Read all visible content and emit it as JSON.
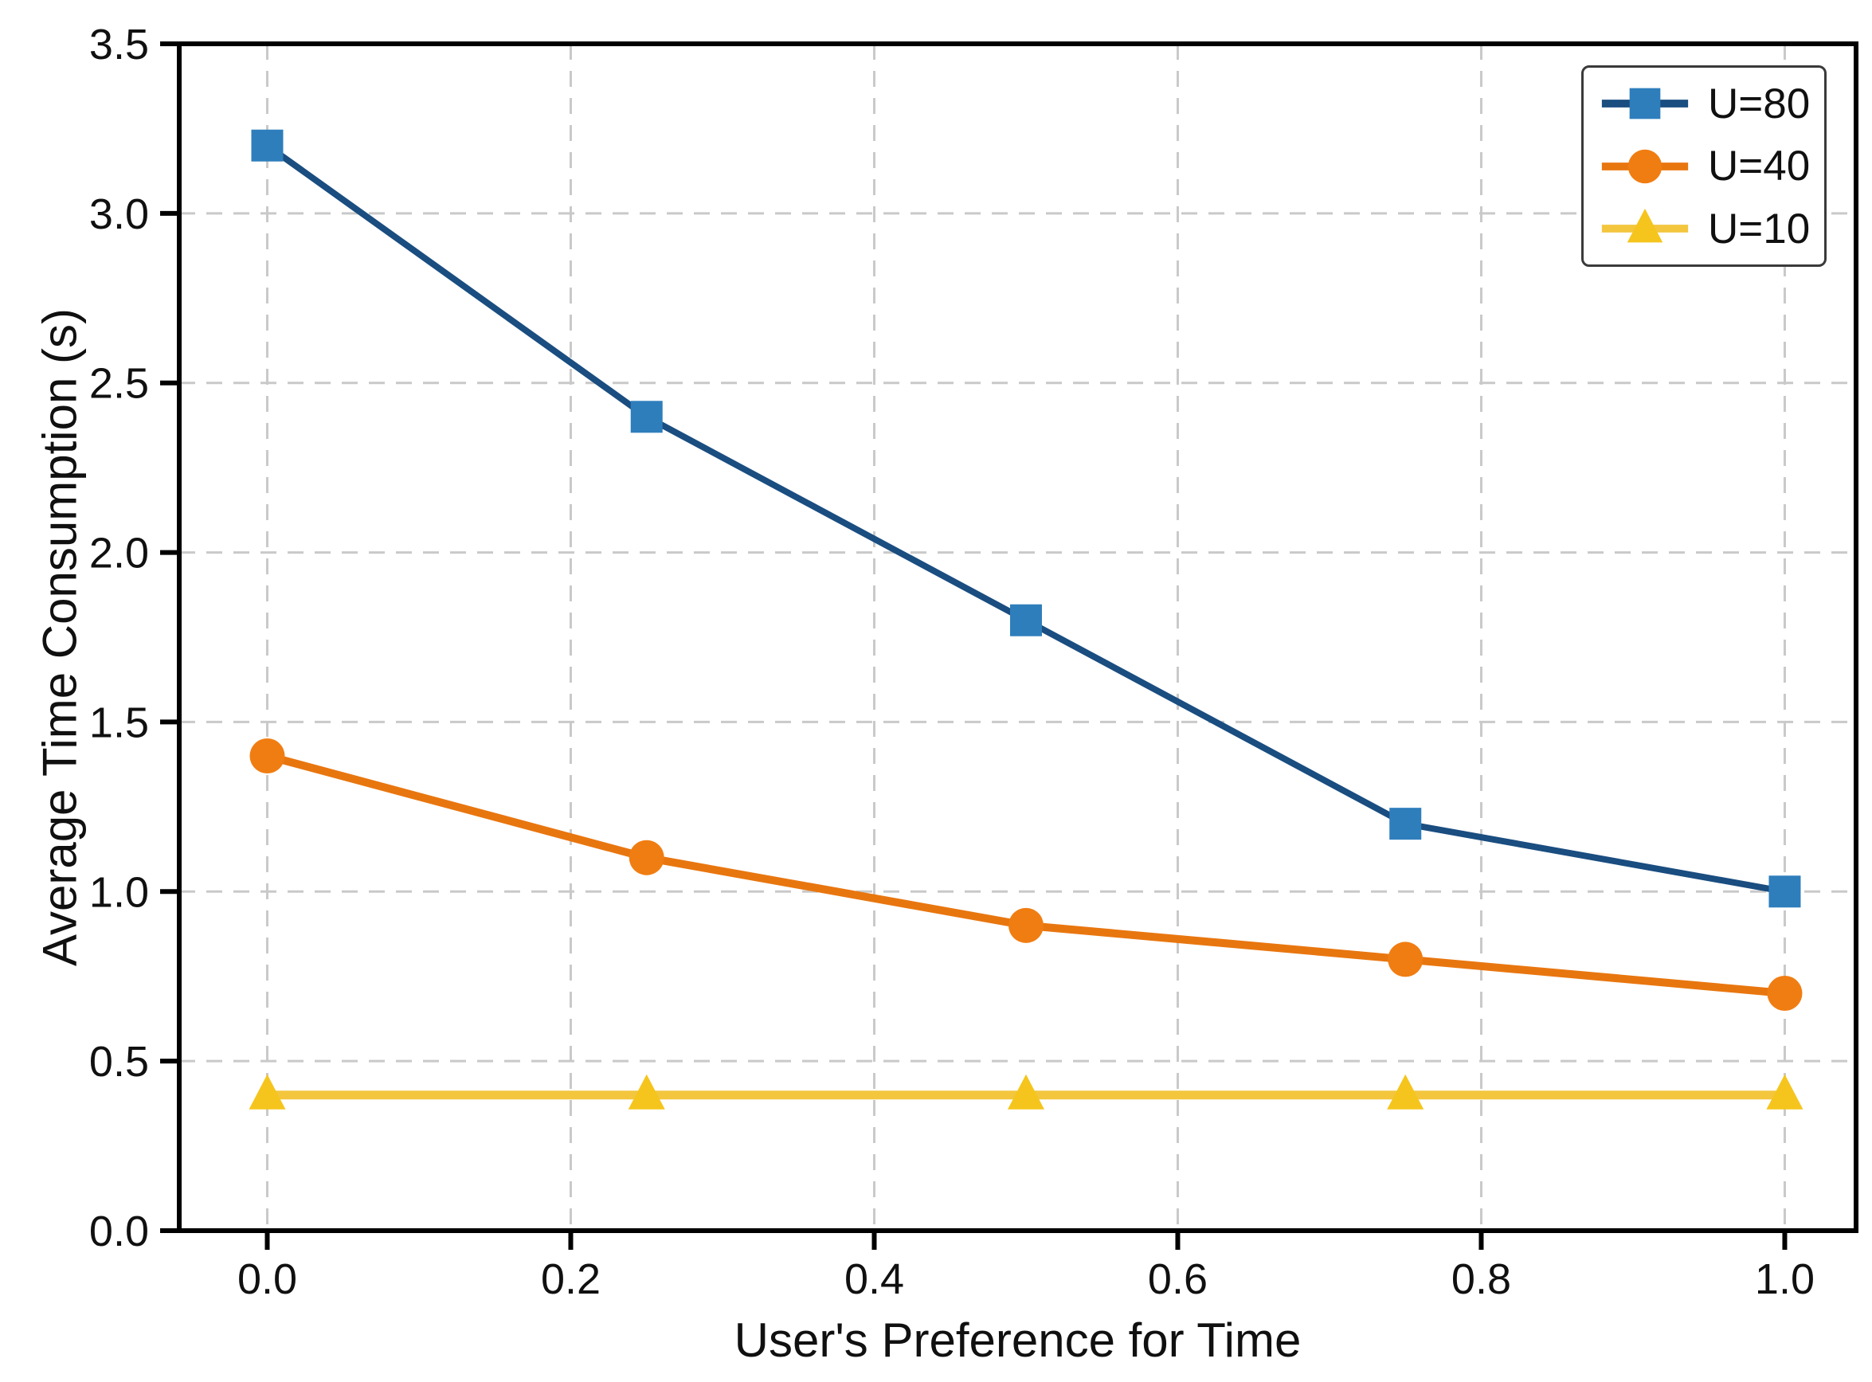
{
  "chart_data": {
    "type": "line",
    "title": "",
    "xlabel": "User's Preference for Time",
    "ylabel": "Average Time Consumption (s)",
    "x": [
      0.0,
      0.25,
      0.5,
      0.75,
      1.0
    ],
    "series": [
      {
        "name": "U=80",
        "values": [
          3.2,
          2.4,
          1.8,
          1.2,
          1.0
        ],
        "marker": "square",
        "line_color": "#1a4d80",
        "marker_color": "#2e7ebc"
      },
      {
        "name": "U=40",
        "values": [
          1.4,
          1.1,
          0.9,
          0.8,
          0.7
        ],
        "marker": "circle",
        "line_color": "#e8760f",
        "marker_color": "#f07d12"
      },
      {
        "name": "U=10",
        "values": [
          0.4,
          0.4,
          0.4,
          0.4,
          0.4
        ],
        "marker": "triangle",
        "line_color": "#f3c63e",
        "marker_color": "#f5c51d"
      }
    ],
    "xlim": [
      -0.058,
      1.047
    ],
    "ylim": [
      0,
      3.5
    ],
    "x_ticks": [
      "0.0",
      "0.2",
      "0.4",
      "0.6",
      "0.8",
      "1.0"
    ],
    "x_tick_values": [
      0.0,
      0.2,
      0.4,
      0.6,
      0.8,
      1.0
    ],
    "y_ticks": [
      "0.0",
      "0.5",
      "1.0",
      "1.5",
      "2.0",
      "2.5",
      "3.0",
      "3.5"
    ],
    "y_tick_values": [
      0.0,
      0.5,
      1.0,
      1.5,
      2.0,
      2.5,
      3.0,
      3.5
    ],
    "grid": true,
    "grid_color": "#c9c9c9",
    "axis_color": "#000000",
    "text_color": "#101010",
    "legend_position": "upper right"
  }
}
